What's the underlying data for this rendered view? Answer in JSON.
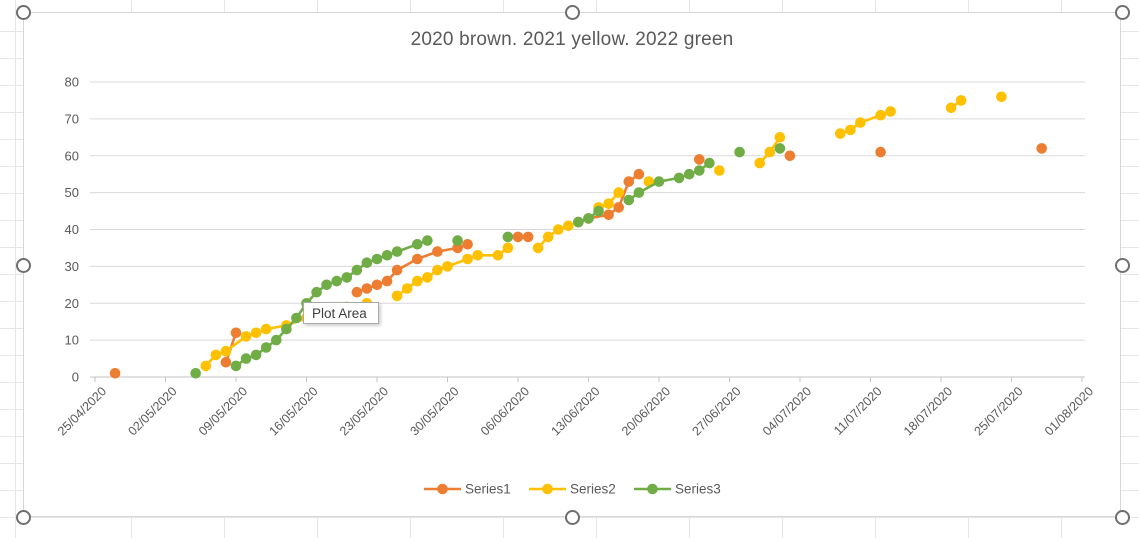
{
  "tooltip": {
    "label": "Plot Area"
  },
  "chart_data": {
    "type": "line",
    "title": "2020 brown. 2021 yellow. 2022 green",
    "legend_position": "bottom",
    "grid": "horizontal",
    "x_axis": {
      "start_date": "25/04/2020",
      "tick_interval_days": 7,
      "labels": [
        "25/04/2020",
        "02/05/2020",
        "09/05/2020",
        "16/05/2020",
        "23/05/2020",
        "30/05/2020",
        "06/06/2020",
        "13/06/2020",
        "20/06/2020",
        "27/06/2020",
        "04/07/2020",
        "11/07/2020",
        "18/07/2020",
        "25/07/2020",
        "01/08/2020"
      ]
    },
    "y_axis": {
      "min": 0,
      "max": 80,
      "step": 10,
      "ticks": [
        0,
        10,
        20,
        30,
        40,
        50,
        60,
        70,
        80
      ]
    },
    "series": [
      {
        "name": "Series1",
        "color": "#ED7D31",
        "points": [
          [
            "27/04/2020",
            1
          ],
          [
            "08/05/2020",
            4
          ],
          [
            "09/05/2020",
            12
          ],
          [
            "21/05/2020",
            23
          ],
          [
            "22/05/2020",
            24
          ],
          [
            "23/05/2020",
            25
          ],
          [
            "24/05/2020",
            26
          ],
          [
            "25/05/2020",
            29
          ],
          [
            "27/05/2020",
            32
          ],
          [
            "29/05/2020",
            34
          ],
          [
            "31/05/2020",
            35
          ],
          [
            "01/06/2020",
            36
          ],
          [
            "06/06/2020",
            38
          ],
          [
            "07/06/2020",
            38
          ],
          [
            "12/06/2020",
            42
          ],
          [
            "13/06/2020",
            43
          ],
          [
            "15/06/2020",
            44
          ],
          [
            "16/06/2020",
            46
          ],
          [
            "17/06/2020",
            53
          ],
          [
            "18/06/2020",
            55
          ],
          [
            "24/06/2020",
            59
          ],
          [
            "03/07/2020",
            60
          ],
          [
            "12/07/2020",
            61
          ],
          [
            "28/07/2020",
            62
          ]
        ]
      },
      {
        "name": "Series2",
        "color": "#FFC000",
        "points": [
          [
            "06/05/2020",
            3
          ],
          [
            "07/05/2020",
            6
          ],
          [
            "08/05/2020",
            7
          ],
          [
            "10/05/2020",
            11
          ],
          [
            "11/05/2020",
            12
          ],
          [
            "12/05/2020",
            13
          ],
          [
            "14/05/2020",
            14
          ],
          [
            "16/05/2020",
            16
          ],
          [
            "17/05/2020",
            17
          ],
          [
            "19/05/2020",
            18
          ],
          [
            "20/05/2020",
            19
          ],
          [
            "22/05/2020",
            20
          ],
          [
            "25/05/2020",
            22
          ],
          [
            "26/05/2020",
            24
          ],
          [
            "27/05/2020",
            26
          ],
          [
            "28/05/2020",
            27
          ],
          [
            "29/05/2020",
            29
          ],
          [
            "30/05/2020",
            30
          ],
          [
            "01/06/2020",
            32
          ],
          [
            "02/06/2020",
            33
          ],
          [
            "04/06/2020",
            33
          ],
          [
            "05/06/2020",
            35
          ],
          [
            "08/06/2020",
            35
          ],
          [
            "09/06/2020",
            38
          ],
          [
            "10/06/2020",
            40
          ],
          [
            "11/06/2020",
            41
          ],
          [
            "14/06/2020",
            46
          ],
          [
            "15/06/2020",
            47
          ],
          [
            "16/06/2020",
            50
          ],
          [
            "19/06/2020",
            53
          ],
          [
            "26/06/2020",
            56
          ],
          [
            "30/06/2020",
            58
          ],
          [
            "01/07/2020",
            61
          ],
          [
            "02/07/2020",
            65
          ],
          [
            "08/07/2020",
            66
          ],
          [
            "09/07/2020",
            67
          ],
          [
            "10/07/2020",
            69
          ],
          [
            "12/07/2020",
            71
          ],
          [
            "13/07/2020",
            72
          ],
          [
            "19/07/2020",
            73
          ],
          [
            "20/07/2020",
            75
          ],
          [
            "24/07/2020",
            76
          ]
        ]
      },
      {
        "name": "Series3",
        "color": "#70AD47",
        "points": [
          [
            "05/05/2020",
            1
          ],
          [
            "09/05/2020",
            3
          ],
          [
            "10/05/2020",
            5
          ],
          [
            "11/05/2020",
            6
          ],
          [
            "12/05/2020",
            8
          ],
          [
            "13/05/2020",
            10
          ],
          [
            "14/05/2020",
            13
          ],
          [
            "15/05/2020",
            16
          ],
          [
            "16/05/2020",
            20
          ],
          [
            "17/05/2020",
            23
          ],
          [
            "18/05/2020",
            25
          ],
          [
            "19/05/2020",
            26
          ],
          [
            "20/05/2020",
            27
          ],
          [
            "21/05/2020",
            29
          ],
          [
            "22/05/2020",
            31
          ],
          [
            "23/05/2020",
            32
          ],
          [
            "24/05/2020",
            33
          ],
          [
            "25/05/2020",
            34
          ],
          [
            "27/05/2020",
            36
          ],
          [
            "28/05/2020",
            37
          ],
          [
            "31/05/2020",
            37
          ],
          [
            "05/06/2020",
            38
          ],
          [
            "12/06/2020",
            42
          ],
          [
            "13/06/2020",
            43
          ],
          [
            "14/06/2020",
            45
          ],
          [
            "17/06/2020",
            48
          ],
          [
            "18/06/2020",
            50
          ],
          [
            "20/06/2020",
            53
          ],
          [
            "22/06/2020",
            54
          ],
          [
            "23/06/2020",
            55
          ],
          [
            "24/06/2020",
            56
          ],
          [
            "25/06/2020",
            58
          ],
          [
            "28/06/2020",
            61
          ],
          [
            "02/07/2020",
            62
          ]
        ]
      }
    ]
  }
}
